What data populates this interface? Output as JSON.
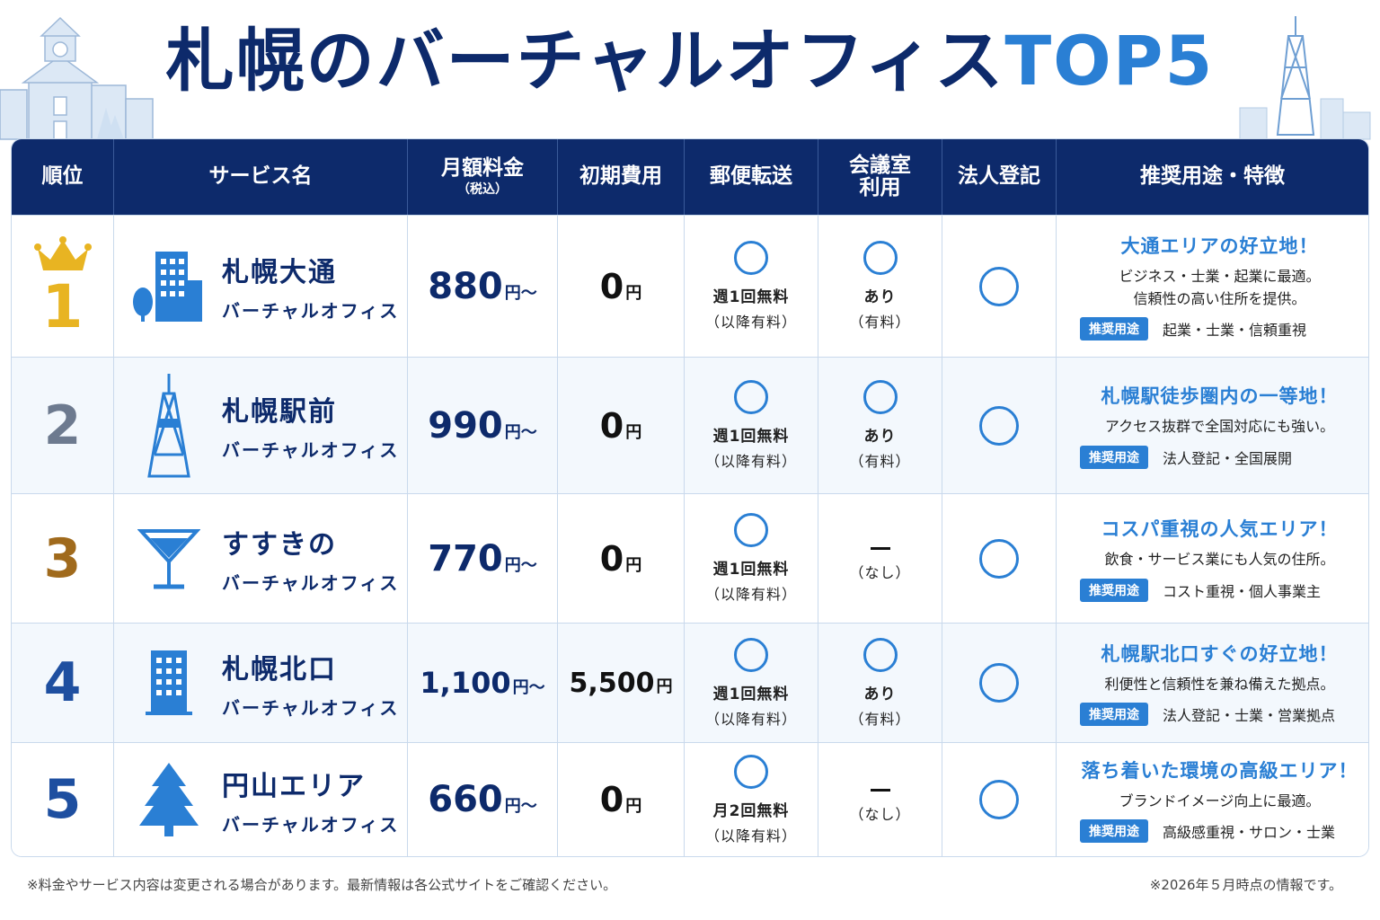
{
  "title": {
    "main": "札幌のバーチャルオフィス",
    "accent": "TOP5"
  },
  "headers": {
    "rank": "順位",
    "service": "サービス名",
    "monthly": "月額料金",
    "monthly_sub": "（税込）",
    "initial": "初期費用",
    "mail": "郵便転送",
    "meeting_l1": "会議室",
    "meeting_l2": "利用",
    "registration": "法人登記",
    "feature": "推奨用途・特徴"
  },
  "rows": [
    {
      "rank": "1",
      "icon": "office-building-tree-icon",
      "name": "札幌大通",
      "sub": "バーチャルオフィス",
      "price": "880",
      "price_unit": "円～",
      "initial": "0",
      "initial_unit": "円",
      "mail_l1": "週1回無料",
      "mail_l2": "（以降有料）",
      "meeting_l1": "あり",
      "meeting_l2": "（有料）",
      "feat_h": "大通エリアの好立地！",
      "feat_d": "ビジネス・士業・起業に最適。\n信頼性の高い住所を提供。",
      "badge": "推奨用途",
      "tags": "起業・士業・信頼重視"
    },
    {
      "rank": "2",
      "icon": "tv-tower-icon",
      "name": "札幌駅前",
      "sub": "バーチャルオフィス",
      "price": "990",
      "price_unit": "円～",
      "initial": "0",
      "initial_unit": "円",
      "mail_l1": "週1回無料",
      "mail_l2": "（以降有料）",
      "meeting_l1": "あり",
      "meeting_l2": "（有料）",
      "feat_h": "札幌駅徒歩圏内の一等地！",
      "feat_d": "アクセス抜群で全国対応にも強い。",
      "badge": "推奨用途",
      "tags": "法人登記・全国展開"
    },
    {
      "rank": "3",
      "icon": "cocktail-glass-icon",
      "name": "すすきの",
      "sub": "バーチャルオフィス",
      "price": "770",
      "price_unit": "円～",
      "initial": "0",
      "initial_unit": "円",
      "mail_l1": "週1回無料",
      "mail_l2": "（以降有料）",
      "meeting_l1": "",
      "meeting_l2": "（なし）",
      "feat_h": "コスパ重視の人気エリア！",
      "feat_d": "飲食・サービス業にも人気の住所。",
      "badge": "推奨用途",
      "tags": "コスト重視・個人事業主"
    },
    {
      "rank": "4",
      "icon": "office-tower-icon",
      "name": "札幌北口",
      "sub": "バーチャルオフィス",
      "price": "1,100",
      "price_unit": "円～",
      "initial": "5,500",
      "initial_unit": "円",
      "mail_l1": "週1回無料",
      "mail_l2": "（以降有料）",
      "meeting_l1": "あり",
      "meeting_l2": "（有料）",
      "feat_h": "札幌駅北口すぐの好立地！",
      "feat_d": "利便性と信頼性を兼ね備えた拠点。",
      "badge": "推奨用途",
      "tags": "法人登記・士業・営業拠点"
    },
    {
      "rank": "5",
      "icon": "pine-tree-icon",
      "name": "円山エリア",
      "sub": "バーチャルオフィス",
      "price": "660",
      "price_unit": "円～",
      "initial": "0",
      "initial_unit": "円",
      "mail_l1": "月2回無料",
      "mail_l2": "（以降有料）",
      "meeting_l1": "",
      "meeting_l2": "（なし）",
      "feat_h": "落ち着いた環境の高級エリア！",
      "feat_d": "ブランドイメージ向上に最適。",
      "badge": "推奨用途",
      "tags": "高級感重視・サロン・士業"
    }
  ],
  "footer": {
    "note_left": "※料金やサービス内容は変更される場合があります。最新情報は各公式サイトをご確認ください。",
    "note_right": "※2026年５月時点の情報です。"
  },
  "colors": {
    "navy": "#0d2a6b",
    "blue": "#2a7fd4",
    "gold": "#e8b422",
    "silver": "#6d7a8f",
    "bronze": "#a06a1c"
  }
}
